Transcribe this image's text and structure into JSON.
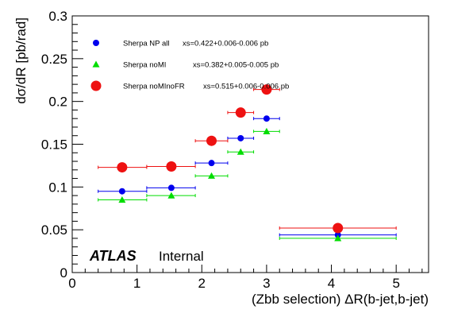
{
  "chart_data": {
    "type": "scatter",
    "xlabel": "(Zbb selection) ΔR(b-jet,b-jet)",
    "ylabel": "dσ/dR [pb/rad]",
    "xlim": [
      0,
      5.5
    ],
    "ylim": [
      0,
      0.3
    ],
    "x_ticks": [
      0,
      1,
      2,
      3,
      4,
      5
    ],
    "x_tick_labels": [
      "0",
      "1",
      "2",
      "3",
      "4",
      "5"
    ],
    "y_ticks": [
      0,
      0.05,
      0.1,
      0.15,
      0.2,
      0.25,
      0.3
    ],
    "y_tick_labels": [
      "0",
      "0.05",
      "0.1",
      "0.15",
      "0.2",
      "0.25",
      "0.3"
    ],
    "grid": false,
    "legend_position": "top-left",
    "annotations": {
      "experiment": "ATLAS",
      "status": "Internal"
    },
    "series": [
      {
        "name": "Sherpa NP all",
        "xsec": "xs=0.422+0.006-0.006 pb",
        "color": "#0000ee",
        "marker": "circle",
        "points": [
          {
            "x": 0.77,
            "y": 0.095,
            "xlo": 0.4,
            "xhi": 1.15
          },
          {
            "x": 1.53,
            "y": 0.099,
            "xlo": 1.15,
            "xhi": 1.9
          },
          {
            "x": 2.15,
            "y": 0.128,
            "xlo": 1.9,
            "xhi": 2.4
          },
          {
            "x": 2.6,
            "y": 0.157,
            "xlo": 2.4,
            "xhi": 2.8
          },
          {
            "x": 3.0,
            "y": 0.18,
            "xlo": 2.8,
            "xhi": 3.2
          },
          {
            "x": 4.1,
            "y": 0.044,
            "xlo": 3.2,
            "xhi": 5.0
          }
        ]
      },
      {
        "name": "Sherpa noMI",
        "xsec": "xs=0.382+0.005-0.005 pb",
        "color": "#00dd00",
        "marker": "triangle",
        "points": [
          {
            "x": 0.77,
            "y": 0.085,
            "xlo": 0.4,
            "xhi": 1.15
          },
          {
            "x": 1.53,
            "y": 0.09,
            "xlo": 1.15,
            "xhi": 1.9
          },
          {
            "x": 2.15,
            "y": 0.113,
            "xlo": 1.9,
            "xhi": 2.4
          },
          {
            "x": 2.6,
            "y": 0.141,
            "xlo": 2.4,
            "xhi": 2.8
          },
          {
            "x": 3.0,
            "y": 0.165,
            "xlo": 2.8,
            "xhi": 3.2
          },
          {
            "x": 4.1,
            "y": 0.04,
            "xlo": 3.2,
            "xhi": 5.0
          }
        ]
      },
      {
        "name": "Sherpa noMInoFR",
        "xsec": "xs=0.515+0.006-0.006 pb",
        "color": "#ee1111",
        "marker": "circle-large",
        "points": [
          {
            "x": 0.77,
            "y": 0.123,
            "xlo": 0.4,
            "xhi": 1.15
          },
          {
            "x": 1.53,
            "y": 0.124,
            "xlo": 1.15,
            "xhi": 1.9
          },
          {
            "x": 2.15,
            "y": 0.154,
            "xlo": 1.9,
            "xhi": 2.4
          },
          {
            "x": 2.6,
            "y": 0.187,
            "xlo": 2.4,
            "xhi": 2.8
          },
          {
            "x": 3.0,
            "y": 0.214,
            "xlo": 2.8,
            "xhi": 3.2
          },
          {
            "x": 4.1,
            "y": 0.052,
            "xlo": 3.2,
            "xhi": 5.0
          }
        ]
      }
    ]
  }
}
